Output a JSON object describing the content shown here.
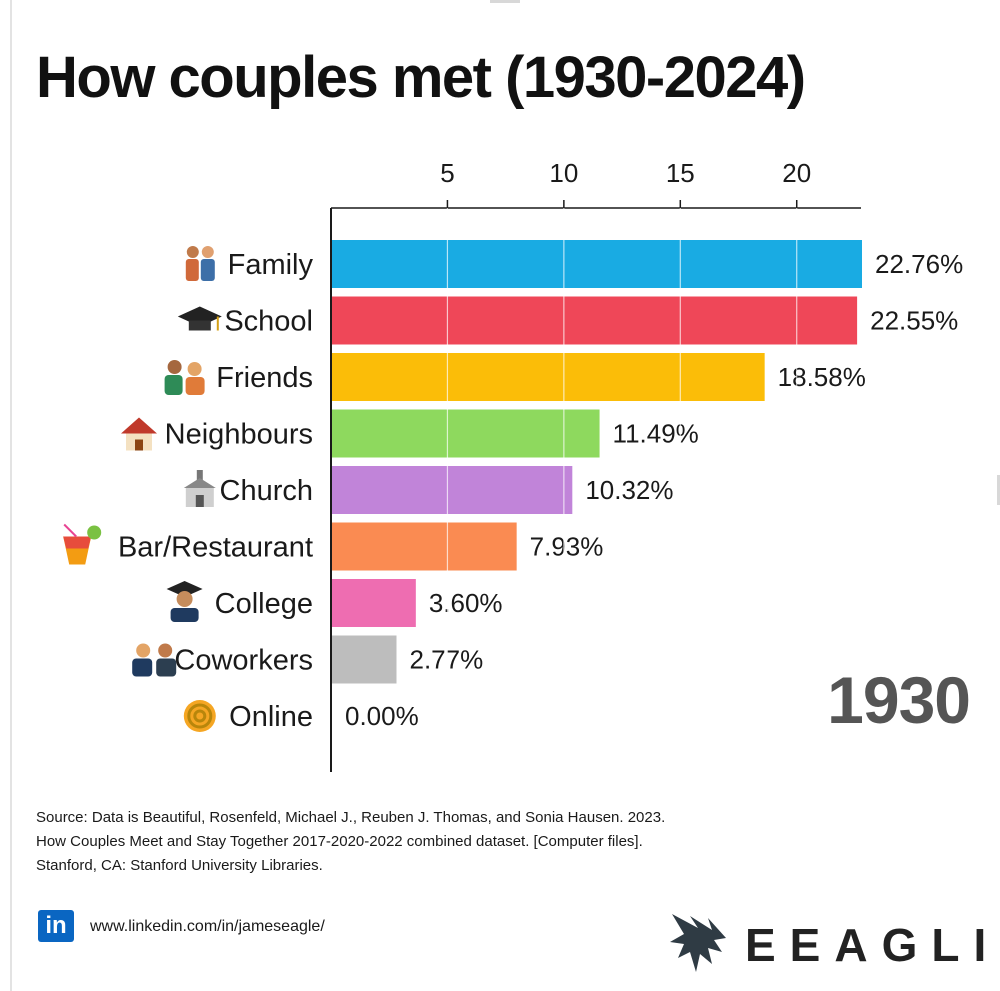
{
  "title": "How couples met (1930-2024)",
  "chart_data": {
    "type": "bar",
    "orientation": "horizontal",
    "categories": [
      "Family",
      "School",
      "Friends",
      "Neighbours",
      "Church",
      "Bar/Restaurant",
      "College",
      "Coworkers",
      "Online"
    ],
    "values": [
      22.76,
      22.55,
      18.58,
      11.49,
      10.32,
      7.93,
      3.6,
      2.77,
      0.0
    ],
    "value_labels": [
      "22.76%",
      "22.55%",
      "18.58%",
      "11.49%",
      "10.32%",
      "7.93%",
      "3.60%",
      "2.77%",
      "0.00%"
    ],
    "colors": [
      "#19abe3",
      "#ef4758",
      "#fbbd08",
      "#8ed95e",
      "#c184d9",
      "#fa8b52",
      "#ee6db1",
      "#bdbdbd",
      "#bdbdbd"
    ],
    "icons": [
      "family-icon",
      "graduation-cap-icon",
      "friends-icon",
      "house-icon",
      "church-icon",
      "tropical-drink-icon",
      "graduate-icon",
      "coworkers-icon",
      "at-sign-icon"
    ],
    "xticks": [
      "5",
      "10",
      "15",
      "20"
    ],
    "xlim": [
      0,
      22.76
    ],
    "xaxis_position": "top",
    "grid": "vertical lines at ticks",
    "year": "1930"
  },
  "source": {
    "line1": "Source: Data is Beautiful, Rosenfeld, Michael J., Reuben J. Thomas, and Sonia Hausen. 2023.",
    "line2": "How Couples Meet and Stay Together 2017-2020-2022 combined dataset. [Computer files].",
    "line3": "Stanford, CA: Stanford University Libraries."
  },
  "footer": {
    "linkedin_icon_text": "in",
    "linkedin_url": "www.linkedin.com/in/jameseagle/",
    "brand": "EEAGLI"
  }
}
